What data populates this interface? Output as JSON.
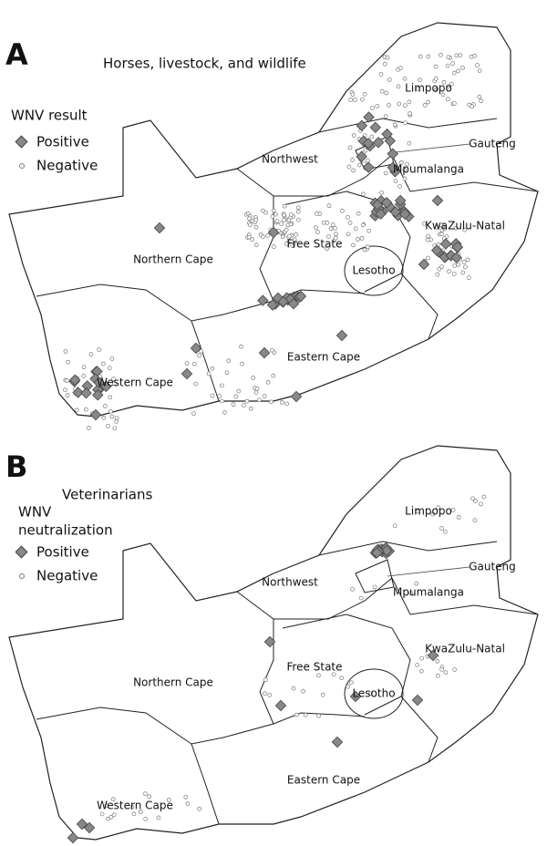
{
  "panels": [
    {
      "letter": "A",
      "title": "Horses, livestock, and wildlife",
      "legend": {
        "title": [
          "WNV result"
        ],
        "positive": "Positive",
        "negative": "Negative"
      },
      "provinces": [
        "Limpopo",
        "Northwest",
        "Gauteng",
        "Mpumalanga",
        "Free State",
        "KwaZulu-Natal",
        "Lesotho",
        "Northern Cape",
        "Eastern Cape",
        "Western Cape"
      ]
    },
    {
      "letter": "B",
      "title": "Veterinarians",
      "legend": {
        "title": [
          "WNV",
          "neutralization"
        ],
        "positive": "Positive",
        "negative": "Negative"
      },
      "provinces": [
        "Limpopo",
        "Northwest",
        "Gauteng",
        "Mpumalanga",
        "Free State",
        "KwaZulu-Natal",
        "Lesotho",
        "Northern Cape",
        "Eastern Cape",
        "Western Cape"
      ]
    }
  ]
}
